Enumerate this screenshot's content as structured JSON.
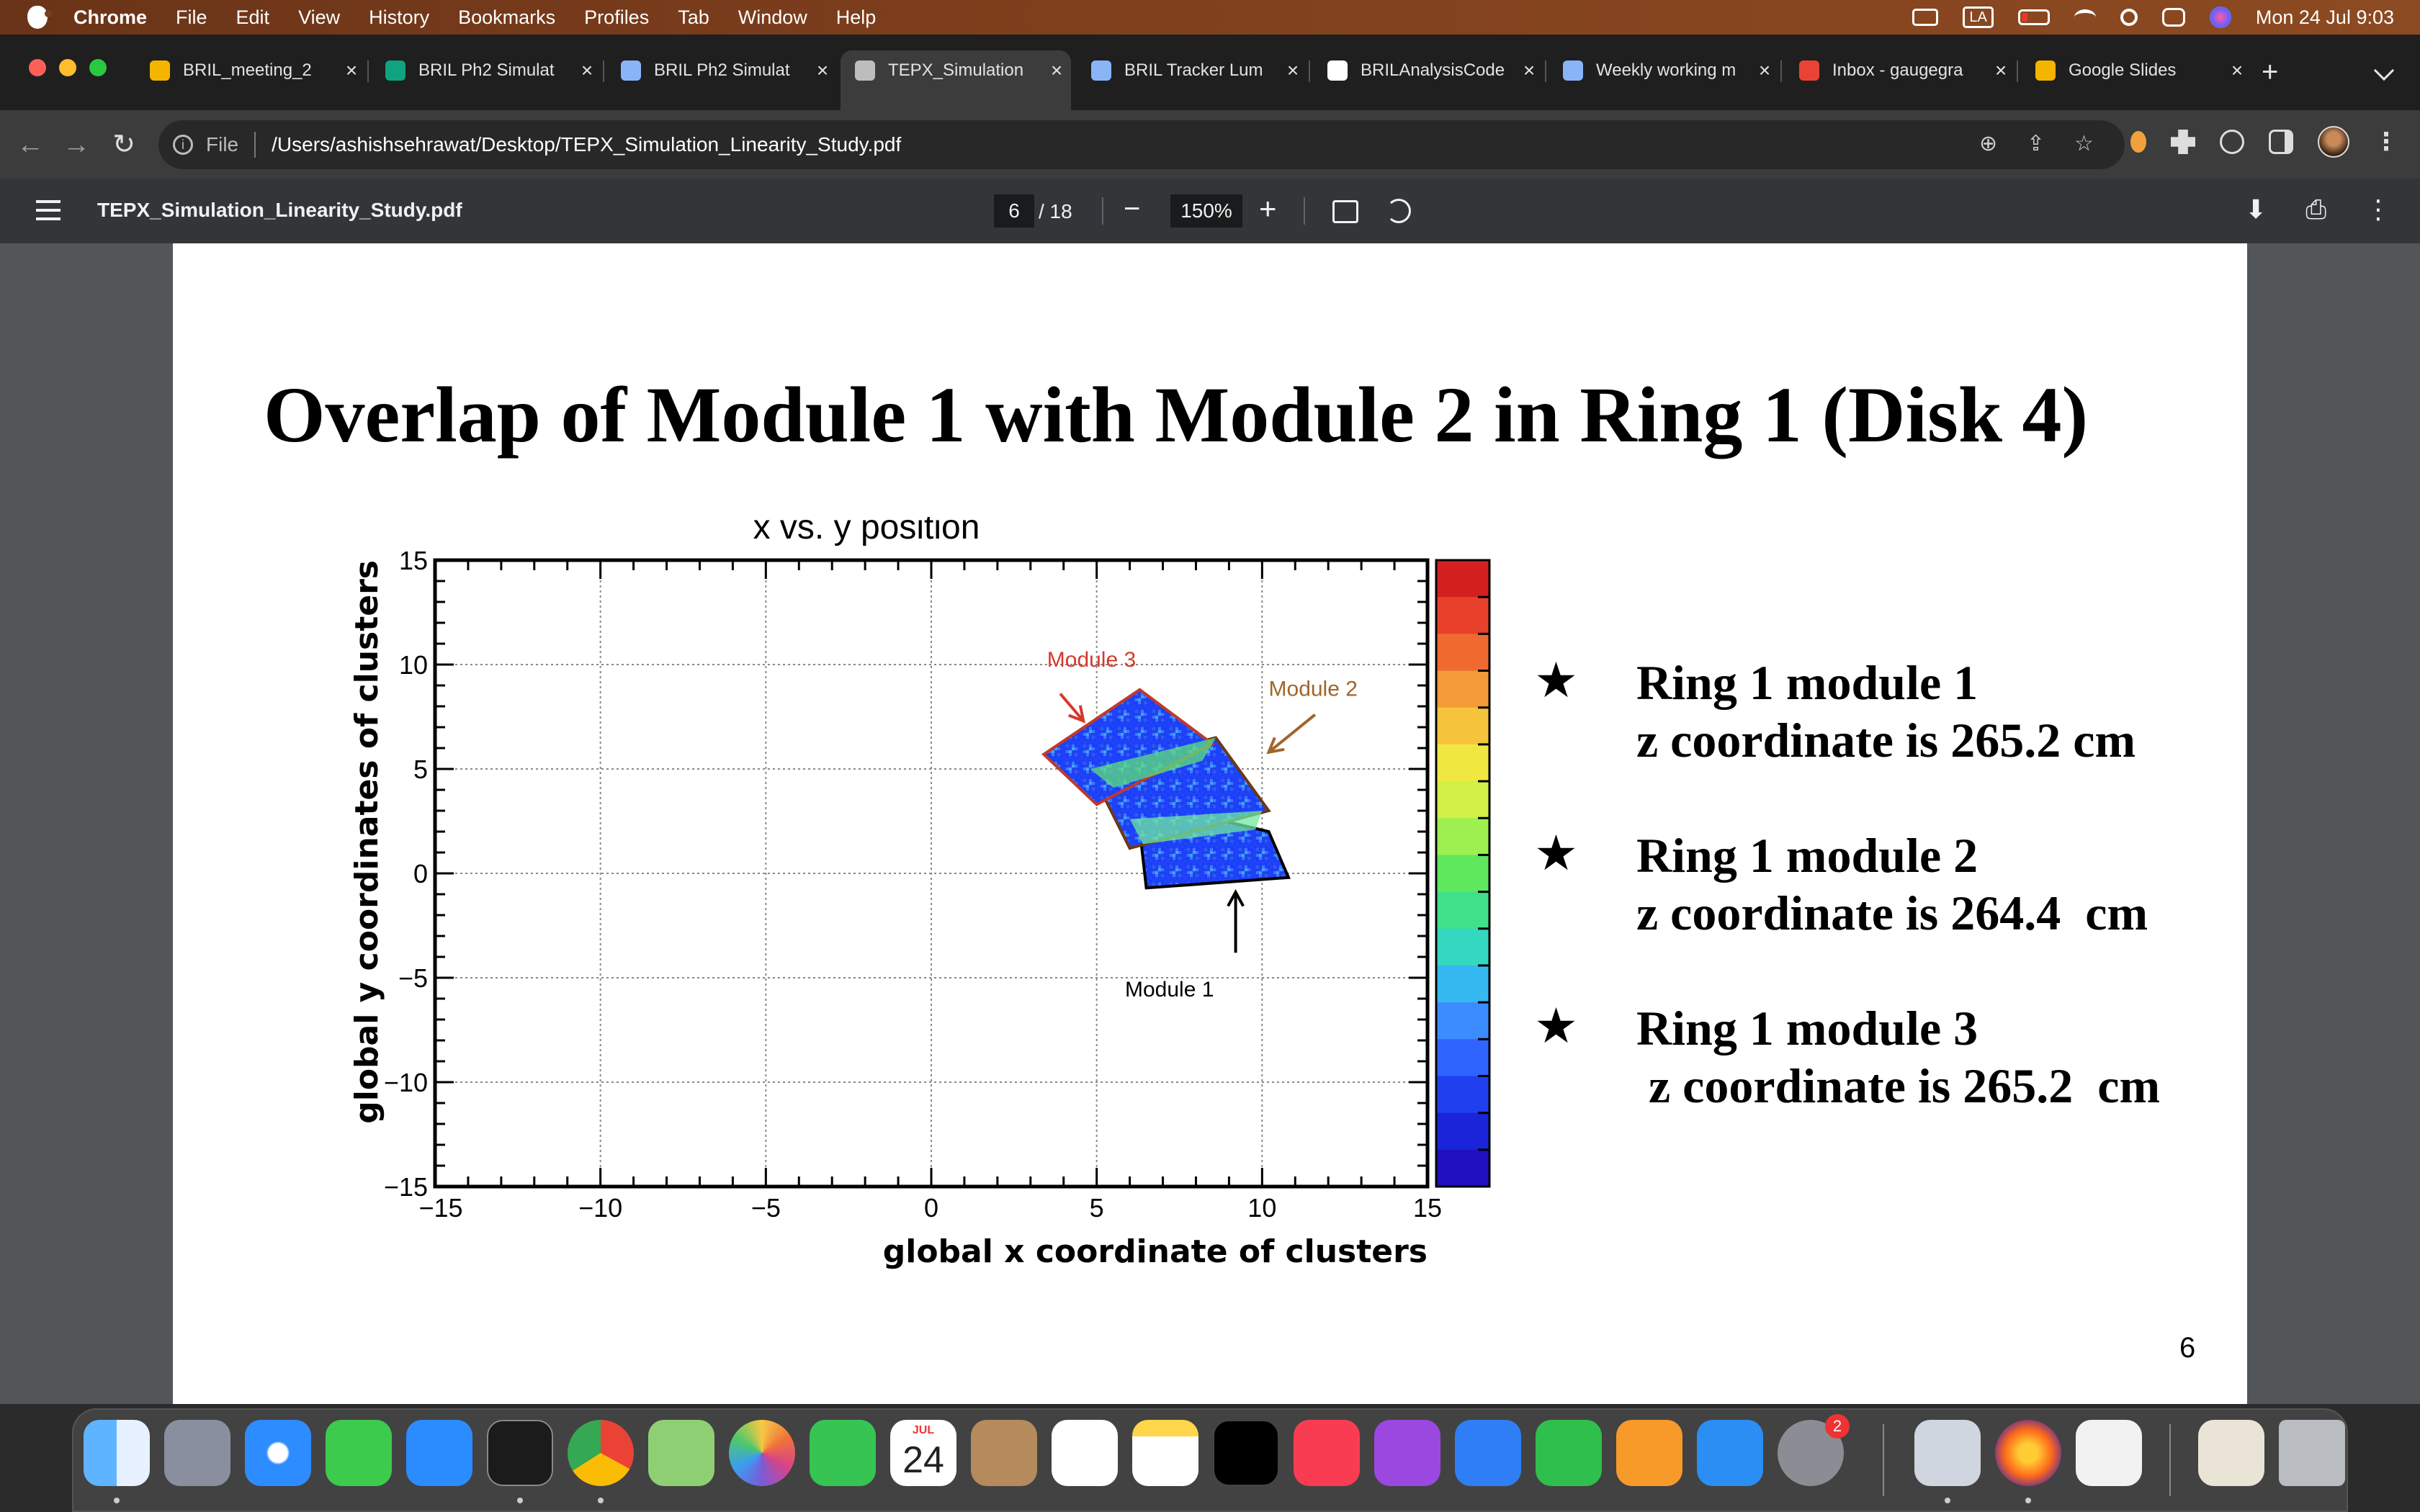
{
  "menubar": {
    "app": "Chrome",
    "items": [
      "File",
      "Edit",
      "View",
      "History",
      "Bookmarks",
      "Profiles",
      "Tab",
      "Window",
      "Help"
    ],
    "input_source": "LA",
    "clock": "Mon 24 Jul  9:03"
  },
  "tabs": [
    {
      "title": "BRIL_meeting_2",
      "favicon_color": "#f4b400"
    },
    {
      "title": "BRIL Ph2 Simulat",
      "favicon_color": "#10a37f"
    },
    {
      "title": "BRIL Ph2 Simulat",
      "favicon_color": "#8ab4f8"
    },
    {
      "title": "TEPX_Simulation",
      "favicon_color": "#bdbdbd",
      "active": true
    },
    {
      "title": "BRIL Tracker Lum",
      "favicon_color": "#8ab4f8"
    },
    {
      "title": "BRILAnalysisCode",
      "favicon_color": "#ffffff"
    },
    {
      "title": "Weekly working m",
      "favicon_color": "#8ab4f8"
    },
    {
      "title": "Inbox - gaugegra",
      "favicon_color": "#ea4335"
    },
    {
      "title": "Google Slides",
      "favicon_color": "#f4b400"
    }
  ],
  "toolbar": {
    "scheme": "File",
    "url": "/Users/ashishsehrawat/Desktop/TEPX_Simulation_Linearity_Study.pdf"
  },
  "pdf": {
    "filename": "TEPX_Simulation_Linearity_Study.pdf",
    "current_page": "6",
    "total_pages": "/ 18",
    "zoom": "150%"
  },
  "slide": {
    "title": "Overlap of Module 1 with Module 2 in Ring 1 (Disk 4)",
    "page_number": "6",
    "bullets": [
      {
        "line1": "Ring 1 module 1",
        "line2": "z coordinate is 265.2 cm"
      },
      {
        "line1": "Ring 1 module 2",
        "line2": "z coordinate is 264.4  cm"
      },
      {
        "line1": "Ring 1 module 3",
        "line2": " z coordinate is 265.2  cm"
      }
    ]
  },
  "chart_data": {
    "type": "heatmap",
    "title": "x vs. y position",
    "xlabel": "global x coordinate of clusters",
    "ylabel": "global y coordinates of clusters",
    "xlim": [
      -15,
      15
    ],
    "ylim": [
      -15,
      15
    ],
    "xticks": [
      "−15",
      "−10",
      "−5",
      "0",
      "5",
      "10",
      "15"
    ],
    "yticks": [
      "15",
      "10",
      "5",
      "0",
      "−5",
      "−10",
      "−15"
    ],
    "grid": true,
    "colorbar": true,
    "modules": [
      {
        "name": "Module 1",
        "corners": [
          [
            6.2,
            3.5
          ],
          [
            10.2,
            2.0
          ],
          [
            10.8,
            -0.2
          ],
          [
            6.5,
            -0.7
          ]
        ],
        "annotation_color": "#000000"
      },
      {
        "name": "Module 2",
        "corners": [
          [
            4.8,
            5.0
          ],
          [
            8.6,
            6.5
          ],
          [
            10.2,
            3.0
          ],
          [
            6.0,
            1.2
          ]
        ],
        "annotation_color": "#a0652a"
      },
      {
        "name": "Module 3",
        "corners": [
          [
            3.4,
            5.7
          ],
          [
            6.3,
            8.8
          ],
          [
            8.5,
            6.2
          ],
          [
            5.0,
            3.3
          ]
        ],
        "annotation_color": "#d43a2b"
      }
    ]
  },
  "dock": {
    "calendar_month": "JUL",
    "calendar_day": "24",
    "settings_badge": "2"
  }
}
